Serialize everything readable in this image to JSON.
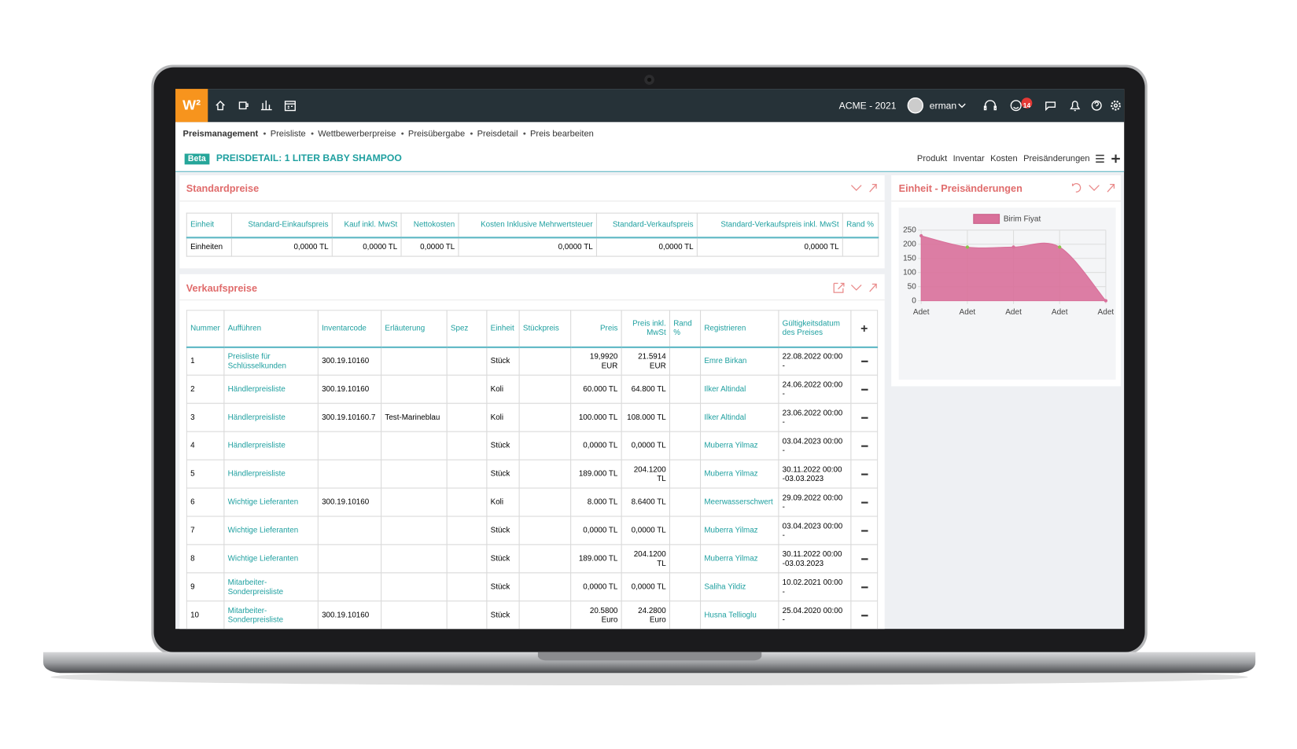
{
  "topbar": {
    "logo": "W²",
    "company": "ACME - 2021",
    "user": "erman",
    "badge": "14"
  },
  "breadcrumb": [
    "Preismanagement",
    "Preisliste",
    "Wettbewerberpreise",
    "Preisübergabe",
    "Preisdetail",
    "Preis bearbeiten"
  ],
  "header": {
    "badge": "Beta",
    "title": "PREISDETAIL: 1 LITER BABY SHAMPOO",
    "tabs": [
      "Produkt",
      "Inventar",
      "Kosten",
      "Preisänderungen"
    ]
  },
  "standard": {
    "title": "Standardpreise",
    "columns": [
      "Einheit",
      "Standard-Einkaufspreis",
      "Kauf inkl. MwSt",
      "Nettokosten",
      "Kosten Inklusive Mehrwertsteuer",
      "Standard-Verkaufspreis",
      "Standard-Verkaufspreis inkl. MwSt",
      "Rand %"
    ],
    "rows": [
      [
        "Einheiten",
        "0,0000 TL",
        "0,0000 TL",
        "0,0000 TL",
        "0,0000 TL",
        "0,0000 TL",
        "0,0000 TL",
        null
      ]
    ]
  },
  "verkauf": {
    "title": "Verkaufspreise",
    "columns": [
      "Nummer",
      "Aufführen",
      "Inventarcode",
      "Erläuterung",
      "Spez",
      "Einheit",
      "Stückpreis",
      "Preis",
      "Preis inkl. MwSt",
      "Rand %",
      "Registrieren",
      "Gültigkeitsdatum des Preises"
    ],
    "rows": [
      [
        "1",
        "Preisliste für Schlüsselkunden",
        "300.19.10160",
        null,
        null,
        "Stück",
        null,
        "19,9920 EUR",
        "21.5914 EUR",
        null,
        "Emre Birkan",
        "22.08.2022 00:00 -"
      ],
      [
        "2",
        "Händlerpreisliste",
        "300.19.10160",
        null,
        null,
        "Koli",
        null,
        "60.000 TL",
        "64.800 TL",
        null,
        "Ilker Altindal",
        "24.06.2022 00:00 -"
      ],
      [
        "3",
        "Händlerpreisliste",
        "300.19.10160.7",
        "Test-Marineblau",
        null,
        "Koli",
        null,
        "100.000 TL",
        "108.000 TL",
        null,
        "Ilker Altindal",
        "23.06.2022 00:00 -"
      ],
      [
        "4",
        "Händlerpreisliste",
        null,
        null,
        null,
        "Stück",
        null,
        "0,0000 TL",
        "0,0000 TL",
        null,
        "Muberra Yilmaz",
        "03.04.2023 00:00 -"
      ],
      [
        "5",
        "Händlerpreisliste",
        null,
        null,
        null,
        "Stück",
        null,
        "189.000 TL",
        "204.1200 TL",
        null,
        "Muberra Yilmaz",
        "30.11.2022 00:00 -03.03.2023"
      ],
      [
        "6",
        "Wichtige Lieferanten",
        "300.19.10160",
        null,
        null,
        "Koli",
        null,
        "8.000 TL",
        "8.6400 TL",
        null,
        "Meerwasserschwert",
        "29.09.2022 00:00 -"
      ],
      [
        "7",
        "Wichtige Lieferanten",
        null,
        null,
        null,
        "Stück",
        null,
        "0,0000 TL",
        "0,0000 TL",
        null,
        "Muberra Yilmaz",
        "03.04.2023 00:00 -"
      ],
      [
        "8",
        "Wichtige Lieferanten",
        null,
        null,
        null,
        "Stück",
        null,
        "189.000 TL",
        "204.1200 TL",
        null,
        "Muberra Yilmaz",
        "30.11.2022 00:00 -03.03.2023"
      ],
      [
        "9",
        "Mitarbeiter-Sonderpreisliste",
        null,
        null,
        null,
        "Stück",
        null,
        "0,0000 TL",
        "0,0000 TL",
        null,
        "Saliha Yildiz",
        "10.02.2021 00:00 -"
      ],
      [
        "10",
        "Mitarbeiter-Sonderpreisliste",
        "300.19.10160",
        null,
        null,
        "Stück",
        null,
        "20.5800 Euro",
        "24.2800 Euro",
        null,
        "Husna Tellioglu",
        "25.04.2020 00:00 -"
      ]
    ]
  },
  "chart_data": {
    "type": "area",
    "title": "Einheit - Preisänderungen",
    "categories": [
      "Adet",
      "Adet",
      "Adet",
      "Adet",
      "Adet"
    ],
    "series": [
      {
        "name": "Birim Fiyat",
        "color": "#d9709a",
        "values": [
          230,
          190,
          190,
          190,
          0
        ]
      }
    ],
    "ylim": [
      0,
      250
    ],
    "yticks": [
      0,
      50,
      100,
      150,
      200,
      250
    ],
    "grid": true
  }
}
